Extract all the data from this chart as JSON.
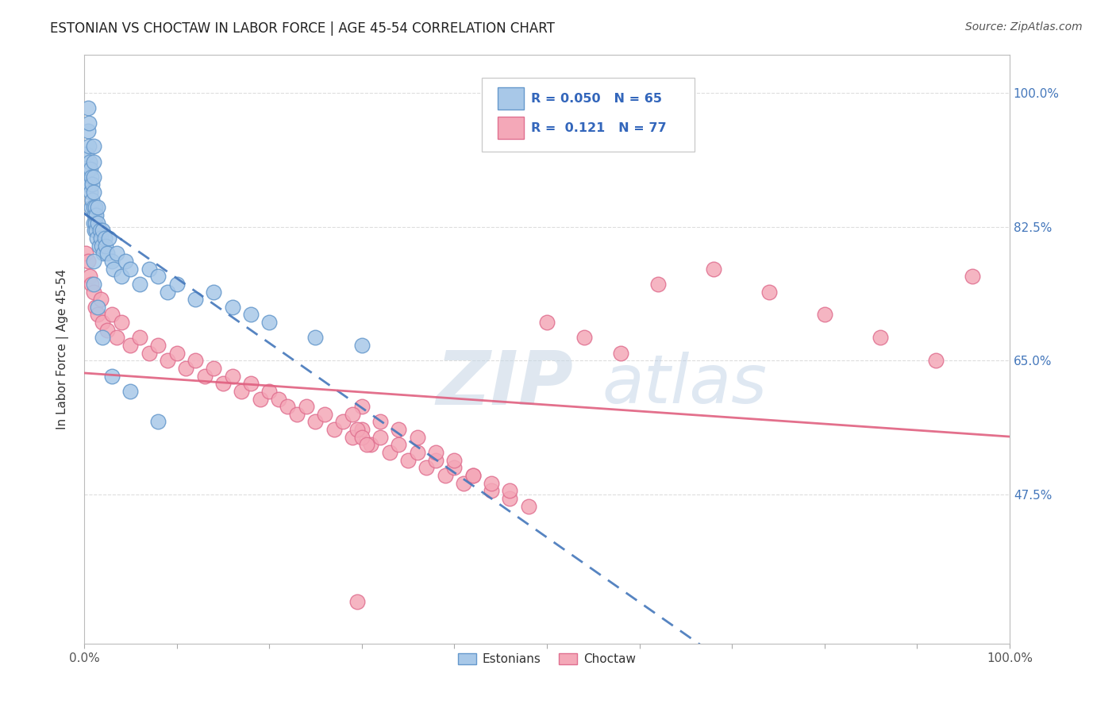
{
  "title": "ESTONIAN VS CHOCTAW IN LABOR FORCE | AGE 45-54 CORRELATION CHART",
  "source": "Source: ZipAtlas.com",
  "ylabel": "In Labor Force | Age 45-54",
  "xlim": [
    0.0,
    1.0
  ],
  "ylim": [
    0.28,
    1.05
  ],
  "ytick_vals": [
    0.475,
    0.65,
    0.825,
    1.0
  ],
  "ytick_labels": [
    "47.5%",
    "65.0%",
    "82.5%",
    "100.0%"
  ],
  "xtick_vals": [
    0.0,
    0.1,
    0.2,
    0.3,
    0.4,
    0.5,
    0.6,
    0.7,
    0.8,
    0.9,
    1.0
  ],
  "xtick_labels": [
    "0.0%",
    "",
    "",
    "",
    "",
    "",
    "",
    "",
    "",
    "",
    "100.0%"
  ],
  "legend_r_estonian": "0.050",
  "legend_n_estonian": "65",
  "legend_r_choctaw": "0.121",
  "legend_n_choctaw": "77",
  "estonian_color": "#a8c8e8",
  "choctaw_color": "#f4a8b8",
  "estonian_edge_color": "#6699cc",
  "choctaw_edge_color": "#e07090",
  "estonian_line_color": "#4477bb",
  "choctaw_line_color": "#e06080",
  "background_color": "#ffffff",
  "grid_color": "#dddddd",
  "watermark_zip_color": "#c0ccd8",
  "watermark_atlas_color": "#b8cce0",
  "est_x": [
    0.002,
    0.003,
    0.004,
    0.004,
    0.005,
    0.005,
    0.005,
    0.006,
    0.006,
    0.007,
    0.007,
    0.008,
    0.008,
    0.009,
    0.009,
    0.01,
    0.01,
    0.01,
    0.01,
    0.01,
    0.01,
    0.011,
    0.011,
    0.012,
    0.012,
    0.013,
    0.013,
    0.014,
    0.015,
    0.015,
    0.016,
    0.017,
    0.018,
    0.019,
    0.02,
    0.021,
    0.022,
    0.023,
    0.025,
    0.027,
    0.03,
    0.032,
    0.035,
    0.04,
    0.045,
    0.05,
    0.06,
    0.07,
    0.08,
    0.09,
    0.1,
    0.12,
    0.14,
    0.16,
    0.18,
    0.2,
    0.25,
    0.3,
    0.01,
    0.01,
    0.015,
    0.02,
    0.03,
    0.05,
    0.08
  ],
  "est_y": [
    0.88,
    0.92,
    0.95,
    0.98,
    0.9,
    0.93,
    0.96,
    0.88,
    0.91,
    0.87,
    0.9,
    0.85,
    0.89,
    0.86,
    0.88,
    0.83,
    0.85,
    0.87,
    0.89,
    0.91,
    0.93,
    0.82,
    0.84,
    0.83,
    0.85,
    0.82,
    0.84,
    0.81,
    0.83,
    0.85,
    0.8,
    0.82,
    0.81,
    0.8,
    0.82,
    0.79,
    0.81,
    0.8,
    0.79,
    0.81,
    0.78,
    0.77,
    0.79,
    0.76,
    0.78,
    0.77,
    0.75,
    0.77,
    0.76,
    0.74,
    0.75,
    0.73,
    0.74,
    0.72,
    0.71,
    0.7,
    0.68,
    0.67,
    0.75,
    0.78,
    0.72,
    0.68,
    0.63,
    0.61,
    0.57
  ],
  "choc_x": [
    0.002,
    0.004,
    0.006,
    0.008,
    0.01,
    0.012,
    0.015,
    0.018,
    0.02,
    0.025,
    0.03,
    0.035,
    0.04,
    0.05,
    0.06,
    0.07,
    0.08,
    0.09,
    0.1,
    0.11,
    0.12,
    0.13,
    0.14,
    0.15,
    0.16,
    0.17,
    0.18,
    0.19,
    0.2,
    0.21,
    0.22,
    0.23,
    0.24,
    0.25,
    0.26,
    0.27,
    0.28,
    0.29,
    0.3,
    0.31,
    0.32,
    0.33,
    0.34,
    0.35,
    0.36,
    0.37,
    0.38,
    0.39,
    0.4,
    0.41,
    0.42,
    0.44,
    0.46,
    0.48,
    0.3,
    0.32,
    0.34,
    0.36,
    0.38,
    0.4,
    0.42,
    0.44,
    0.46,
    0.5,
    0.54,
    0.58,
    0.62,
    0.68,
    0.74,
    0.8,
    0.86,
    0.92,
    0.96,
    0.29,
    0.295,
    0.3,
    0.305
  ],
  "choc_y": [
    0.79,
    0.78,
    0.76,
    0.75,
    0.74,
    0.72,
    0.71,
    0.73,
    0.7,
    0.69,
    0.71,
    0.68,
    0.7,
    0.67,
    0.68,
    0.66,
    0.67,
    0.65,
    0.66,
    0.64,
    0.65,
    0.63,
    0.64,
    0.62,
    0.63,
    0.61,
    0.62,
    0.6,
    0.61,
    0.6,
    0.59,
    0.58,
    0.59,
    0.57,
    0.58,
    0.56,
    0.57,
    0.55,
    0.56,
    0.54,
    0.55,
    0.53,
    0.54,
    0.52,
    0.53,
    0.51,
    0.52,
    0.5,
    0.51,
    0.49,
    0.5,
    0.48,
    0.47,
    0.46,
    0.59,
    0.57,
    0.56,
    0.55,
    0.53,
    0.52,
    0.5,
    0.49,
    0.48,
    0.7,
    0.68,
    0.66,
    0.75,
    0.77,
    0.74,
    0.71,
    0.68,
    0.65,
    0.76,
    0.58,
    0.56,
    0.55,
    0.54
  ],
  "choc_outlier_x": [
    0.295
  ],
  "choc_outlier_y": [
    0.335
  ]
}
